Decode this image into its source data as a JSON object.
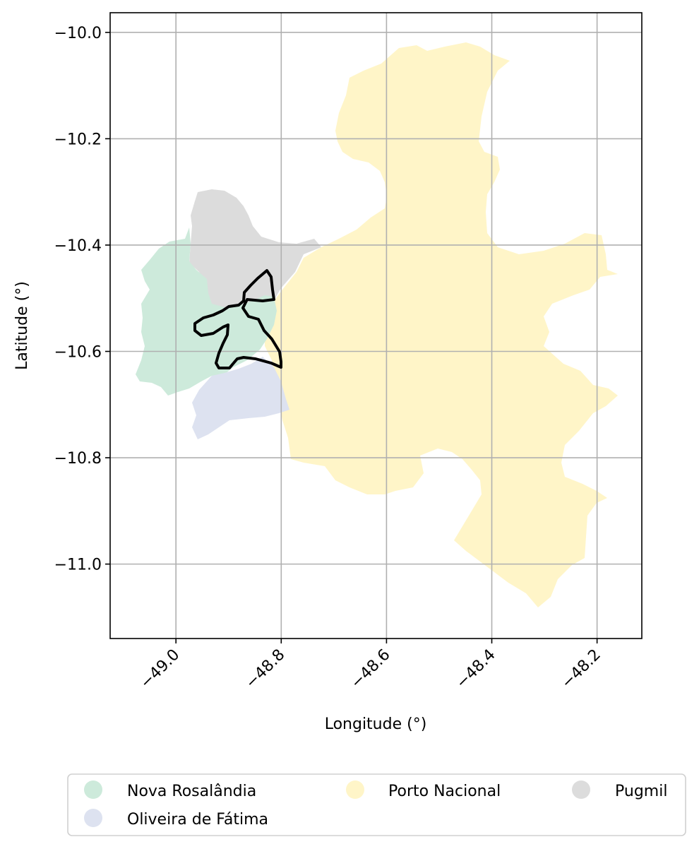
{
  "chart_data": {
    "type": "map",
    "xlabel": "Longitude (°)",
    "ylabel": "Latitude (°)",
    "xlim": [
      -49.125,
      -48.115
    ],
    "ylim": [
      -11.14,
      -9.963
    ],
    "x_ticks": [
      -49.0,
      -48.8,
      -48.6,
      -48.4,
      -48.2
    ],
    "x_tick_labels": [
      "−49.0",
      "−48.8",
      "−48.6",
      "−48.4",
      "−48.2"
    ],
    "y_ticks": [
      -10.0,
      -10.2,
      -10.4,
      -10.6,
      -10.8,
      -11.0
    ],
    "y_tick_labels": [
      "−10.0",
      "−10.2",
      "−10.4",
      "−10.6",
      "−10.8",
      "−11.0"
    ],
    "grid": true,
    "legend_placement": "bottom",
    "regions": [
      {
        "name": "Nova Rosalândia",
        "color": "#cdeadb"
      },
      {
        "name": "Oliveira de Fátima",
        "color": "#dde2f0"
      },
      {
        "name": "Porto Nacional",
        "color": "#fff5c8"
      },
      {
        "name": "Pugmil",
        "color": "#dcdcdc"
      }
    ],
    "outline_color": "#000000"
  }
}
